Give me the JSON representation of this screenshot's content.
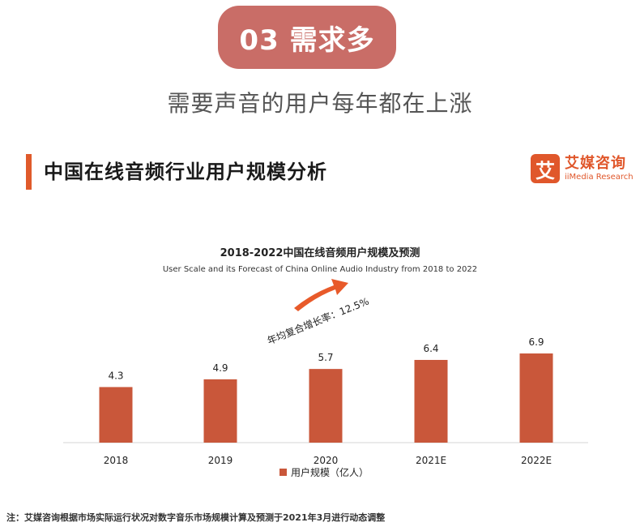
{
  "header": {
    "badge": "03 需求多",
    "subtitle": "需要声音的用户每年都在上涨",
    "section_title": "中国在线音频行业用户规模分析"
  },
  "logo": {
    "mark": "艾",
    "name_cn": "艾媒咨询",
    "name_en": "iiMedia Research"
  },
  "chart_data": {
    "type": "bar",
    "title": "2018-2022中国在线音频用户规模及预测",
    "subtitle": "User Scale and its Forecast of China Online Audio Industry from 2018 to 2022",
    "categories": [
      "2018",
      "2019",
      "2020",
      "2021E",
      "2022E"
    ],
    "series": [
      {
        "name": "用户规模（亿人）",
        "values": [
          4.3,
          4.9,
          5.7,
          6.4,
          6.9
        ]
      }
    ],
    "data_labels": [
      "4.3",
      "4.9",
      "5.7",
      "6.4",
      "6.9"
    ],
    "annotation": "年均复合增长率：12.5%",
    "legend_position": "bottom",
    "grid": false,
    "ylim": [
      0,
      6.9
    ],
    "colors": {
      "bar": "#c9573a",
      "arrow": "#e85a2a"
    }
  },
  "footnote": "注：艾媒咨询根据市场实际运行状况对数字音乐市场规模计算及预测于2021年3月进行动态调整"
}
